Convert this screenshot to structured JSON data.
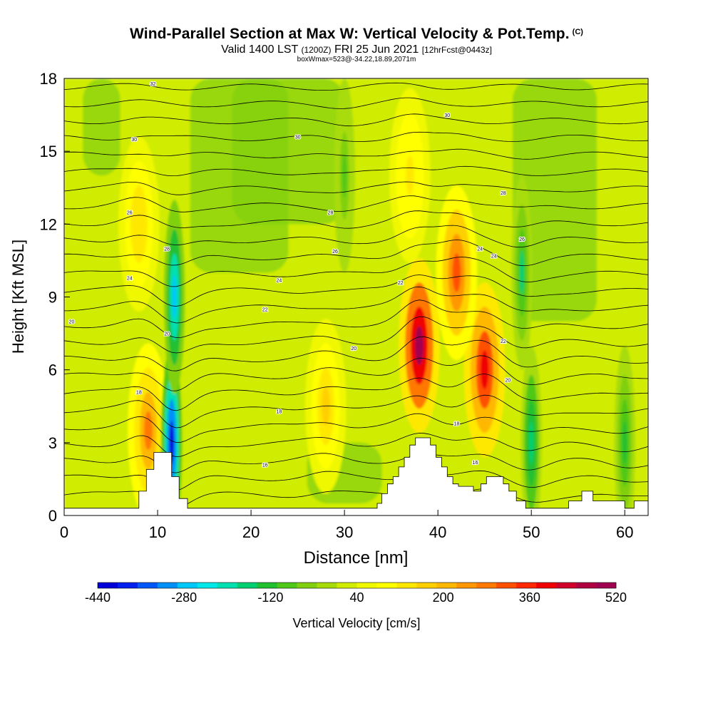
{
  "header": {
    "title": "Wind-Parallel Section at Max W: Vertical Velocity & Pot.Temp.",
    "copyright": "(C)",
    "valid": "Valid 1400 LST",
    "utc": "(1200Z)",
    "date": "FRI 25 Jun 2021",
    "forecast": "[12hrFcst@0443z]",
    "note": "boxWmax=523@-34.22,18.89,2071m"
  },
  "chart_data": {
    "type": "heatmap",
    "title": "Wind-Parallel Section at Max W: Vertical Velocity & Pot.Temp.",
    "xlabel": "Distance [nm]",
    "ylabel": "Height [Kft MSL]",
    "xlim": [
      0,
      62.5
    ],
    "ylim": [
      0,
      18
    ],
    "x_ticks": [
      0,
      10,
      20,
      30,
      40,
      50,
      60
    ],
    "y_ticks": [
      0,
      3,
      6,
      9,
      12,
      15,
      18
    ],
    "colorbar": {
      "label": "Vertical Velocity [cm/s]",
      "range": [
        -440,
        520
      ],
      "tick_values": [
        -440,
        -280,
        -120,
        40,
        200,
        360,
        520
      ],
      "tick_labels": [
        "-440",
        "-280",
        "-120",
        "40",
        "200",
        "360",
        "520"
      ],
      "colors": [
        "#0000d8",
        "#0020f0",
        "#0058f8",
        "#0090f8",
        "#00c8f8",
        "#00e8e8",
        "#00e0b0",
        "#00d070",
        "#20c030",
        "#50c818",
        "#80d010",
        "#a8dc08",
        "#d0ec00",
        "#f0f800",
        "#ffff00",
        "#ffe800",
        "#ffd000",
        "#ffb800",
        "#ff9800",
        "#ff7800",
        "#ff5000",
        "#ff2800",
        "#f00000",
        "#d00028",
        "#b00040",
        "#a00050"
      ]
    },
    "w_features": [
      {
        "type": "updraft",
        "x": 38.0,
        "z": 7.0,
        "w": 523
      },
      {
        "type": "updraft",
        "x": 45.0,
        "z": 6.0,
        "w": 400
      },
      {
        "type": "updraft",
        "x": 42.0,
        "z": 10.0,
        "w": 300
      },
      {
        "type": "updraft",
        "x": 9.0,
        "z": 3.5,
        "w": 280
      },
      {
        "type": "updraft",
        "x": 8.0,
        "z": 12.0,
        "w": 150
      },
      {
        "type": "updraft",
        "x": 28.0,
        "z": 4.5,
        "w": 160
      },
      {
        "type": "updraft",
        "x": 37.0,
        "z": 14.0,
        "w": 140
      },
      {
        "type": "downdraft",
        "x": 11.5,
        "z": 3.0,
        "w": -420
      },
      {
        "type": "downdraft",
        "x": 11.8,
        "z": 9.0,
        "w": -280
      },
      {
        "type": "downdraft",
        "x": 50.0,
        "z": 3.0,
        "w": -180
      },
      {
        "type": "downdraft",
        "x": 49.0,
        "z": 10.0,
        "w": -150
      },
      {
        "type": "downdraft",
        "x": 30.0,
        "z": 14.0,
        "w": -80
      },
      {
        "type": "downdraft",
        "x": 60.0,
        "z": 3.0,
        "w": -120
      }
    ],
    "isentrope_labels": [
      {
        "x": 9.5,
        "z": 17.8,
        "text": "32"
      },
      {
        "x": 7.5,
        "z": 15.5,
        "text": "30"
      },
      {
        "x": 25.0,
        "z": 15.6,
        "text": "30"
      },
      {
        "x": 41.0,
        "z": 16.5,
        "text": "30"
      },
      {
        "x": 7.0,
        "z": 12.5,
        "text": "26"
      },
      {
        "x": 28.5,
        "z": 12.5,
        "text": "28"
      },
      {
        "x": 47.0,
        "z": 13.3,
        "text": "28"
      },
      {
        "x": 11.0,
        "z": 11.0,
        "text": "28"
      },
      {
        "x": 29.0,
        "z": 10.9,
        "text": "26"
      },
      {
        "x": 49.0,
        "z": 11.4,
        "text": "26"
      },
      {
        "x": 44.5,
        "z": 11.0,
        "text": "24"
      },
      {
        "x": 46.0,
        "z": 10.7,
        "text": "24"
      },
      {
        "x": 7.0,
        "z": 9.8,
        "text": "24"
      },
      {
        "x": 23.0,
        "z": 9.7,
        "text": "24"
      },
      {
        "x": 36.0,
        "z": 9.6,
        "text": "22"
      },
      {
        "x": 21.5,
        "z": 8.5,
        "text": "22"
      },
      {
        "x": 0.8,
        "z": 8.0,
        "text": "20"
      },
      {
        "x": 11.0,
        "z": 7.5,
        "text": "20"
      },
      {
        "x": 31.0,
        "z": 6.9,
        "text": "20"
      },
      {
        "x": 47.0,
        "z": 7.2,
        "text": "22"
      },
      {
        "x": 47.5,
        "z": 5.6,
        "text": "20"
      },
      {
        "x": 8.0,
        "z": 5.1,
        "text": "18"
      },
      {
        "x": 23.0,
        "z": 4.3,
        "text": "18"
      },
      {
        "x": 42.0,
        "z": 3.8,
        "text": "18"
      },
      {
        "x": 21.5,
        "z": 2.1,
        "text": "16"
      },
      {
        "x": 44.0,
        "z": 2.2,
        "text": "16"
      }
    ],
    "terrain": [
      [
        0,
        0.3
      ],
      [
        8,
        0.3
      ],
      [
        8,
        1.0
      ],
      [
        8.8,
        1.0
      ],
      [
        8.8,
        1.9
      ],
      [
        9.6,
        1.9
      ],
      [
        9.6,
        2.6
      ],
      [
        11.5,
        2.6
      ],
      [
        11.5,
        1.6
      ],
      [
        12.3,
        1.6
      ],
      [
        12.3,
        0.7
      ],
      [
        13.2,
        0.7
      ],
      [
        13.2,
        0.3
      ],
      [
        33.5,
        0.3
      ],
      [
        33.5,
        0.5
      ],
      [
        34,
        0.5
      ],
      [
        34,
        0.9
      ],
      [
        34.6,
        0.9
      ],
      [
        34.6,
        1.3
      ],
      [
        35.2,
        1.3
      ],
      [
        35.2,
        1.6
      ],
      [
        35.8,
        1.6
      ],
      [
        35.8,
        2.0
      ],
      [
        36.4,
        2.0
      ],
      [
        36.4,
        2.4
      ],
      [
        37.0,
        2.4
      ],
      [
        37.0,
        2.9
      ],
      [
        37.6,
        2.9
      ],
      [
        37.6,
        3.2
      ],
      [
        39.2,
        3.2
      ],
      [
        39.2,
        2.9
      ],
      [
        39.8,
        2.9
      ],
      [
        39.8,
        2.4
      ],
      [
        40.4,
        2.4
      ],
      [
        40.4,
        2.0
      ],
      [
        41.0,
        2.0
      ],
      [
        41.0,
        1.6
      ],
      [
        41.6,
        1.6
      ],
      [
        41.6,
        1.3
      ],
      [
        42.2,
        1.3
      ],
      [
        42.2,
        1.2
      ],
      [
        43.8,
        1.2
      ],
      [
        43.8,
        1.0
      ],
      [
        44.6,
        1.0
      ],
      [
        44.6,
        1.3
      ],
      [
        45.2,
        1.3
      ],
      [
        45.2,
        1.6
      ],
      [
        47.0,
        1.6
      ],
      [
        47.0,
        1.3
      ],
      [
        47.6,
        1.3
      ],
      [
        47.6,
        1.0
      ],
      [
        48.4,
        1.0
      ],
      [
        48.4,
        0.6
      ],
      [
        49.4,
        0.6
      ],
      [
        49.4,
        0.3
      ],
      [
        54,
        0.3
      ],
      [
        54,
        0.6
      ],
      [
        55.4,
        0.6
      ],
      [
        55.4,
        1.0
      ],
      [
        56.6,
        1.0
      ],
      [
        56.6,
        0.6
      ],
      [
        60,
        0.6
      ],
      [
        60,
        0.3
      ],
      [
        61,
        0.3
      ],
      [
        61,
        0.6
      ],
      [
        62.5,
        0.6
      ],
      [
        62.5,
        0
      ]
    ]
  }
}
